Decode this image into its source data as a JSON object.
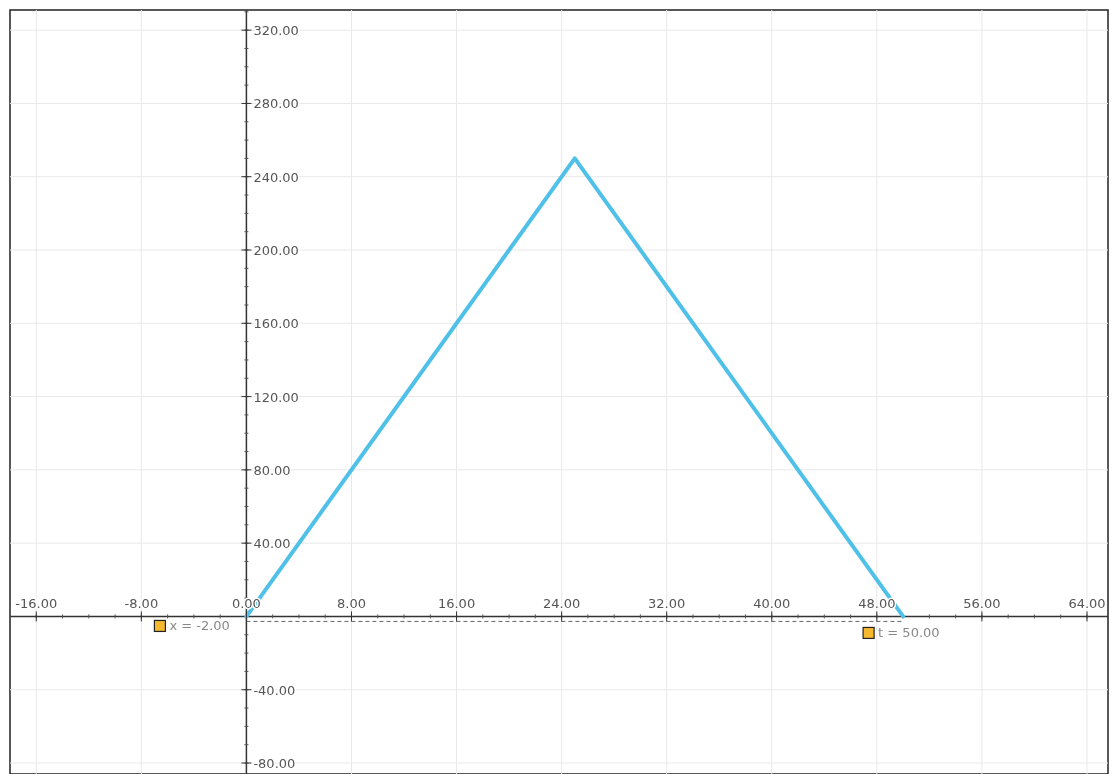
{
  "chart_data": {
    "type": "line",
    "x": [
      0,
      25,
      50
    ],
    "series": [
      {
        "color": "#4fc0e8",
        "values": [
          0,
          250,
          0
        ]
      }
    ],
    "xlim": [
      -18,
      65.6
    ],
    "ylim": [
      -86,
      331
    ],
    "xticks": [
      {
        "value": -16,
        "label": "-16.00"
      },
      {
        "value": -8,
        "label": "-8.00"
      },
      {
        "value": 0,
        "label": "0.00"
      },
      {
        "value": 8,
        "label": "8.00"
      },
      {
        "value": 16,
        "label": "16.00"
      },
      {
        "value": 24,
        "label": "24.00"
      },
      {
        "value": 32,
        "label": "32.00"
      },
      {
        "value": 40,
        "label": "40.00"
      },
      {
        "value": 48,
        "label": "48.00"
      },
      {
        "value": 56,
        "label": "56.00"
      },
      {
        "value": 64,
        "label": "64.00"
      }
    ],
    "yticks": [
      {
        "value": -80,
        "label": "-80.00"
      },
      {
        "value": -40,
        "label": "-40.00"
      },
      {
        "value": 40,
        "label": "40.00"
      },
      {
        "value": 80,
        "label": "80.00"
      },
      {
        "value": 120,
        "label": "120.00"
      },
      {
        "value": 160,
        "label": "160.00"
      },
      {
        "value": 200,
        "label": "200.00"
      },
      {
        "value": 240,
        "label": "240.00"
      },
      {
        "value": 280,
        "label": "280.00"
      },
      {
        "value": 320,
        "label": "320.00"
      }
    ],
    "grid": true,
    "marker": "none",
    "annotations": [
      "x = -2.00",
      "t = 50.00"
    ]
  }
}
